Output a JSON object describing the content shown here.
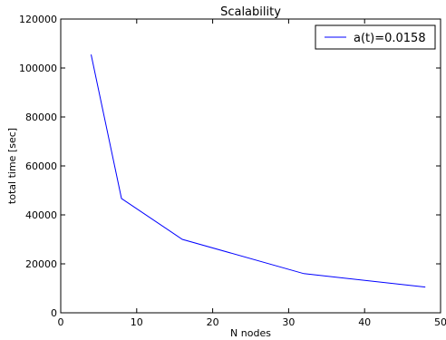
{
  "chart_data": {
    "type": "line",
    "title": "Scalability",
    "xlabel": "N nodes",
    "ylabel": "total time [sec]",
    "xlim": [
      0,
      50
    ],
    "ylim": [
      0,
      120000
    ],
    "xticks": [
      0,
      10,
      20,
      30,
      40,
      50
    ],
    "yticks": [
      0,
      20000,
      40000,
      60000,
      80000,
      100000,
      120000
    ],
    "grid": false,
    "legend_position": "top-right",
    "series": [
      {
        "name": "a(t)=0.0158",
        "color": "#0000ff",
        "x": [
          4,
          8,
          16,
          32,
          48
        ],
        "y": [
          105500,
          46700,
          30000,
          16000,
          10500
        ]
      }
    ]
  }
}
